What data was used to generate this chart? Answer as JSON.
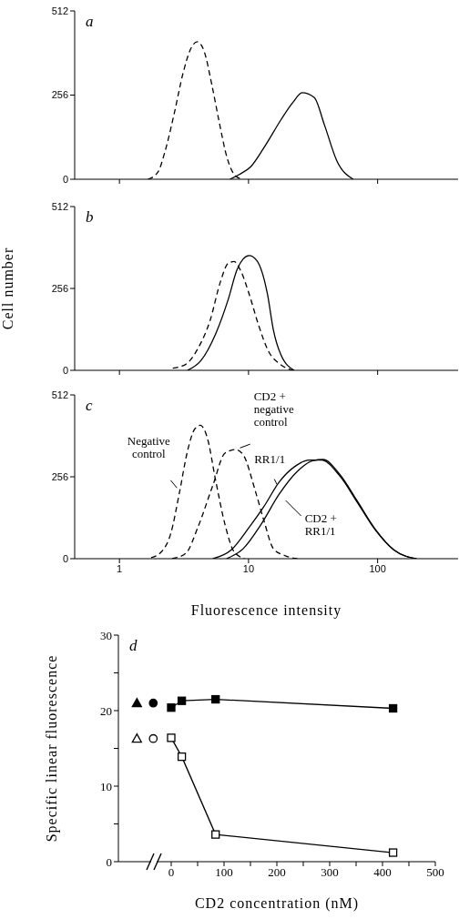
{
  "chart_data": [
    {
      "type": "line",
      "title": "a",
      "log": "x",
      "xlim": [
        0.45,
        420
      ],
      "xticks": [
        1,
        10,
        100
      ],
      "ylim": [
        0,
        512
      ],
      "yticks": [
        0,
        256,
        512
      ],
      "tick_labels": "y",
      "series": [
        {
          "type": "line",
          "color": "#000000",
          "line_style": "dashed",
          "x": [
            1.66,
            1.98,
            2.26,
            2.66,
            3.12,
            3.57,
            4.01,
            4.54,
            5.2,
            5.94,
            6.8,
            7.77,
            8.89
          ],
          "values": [
            0,
            21,
            86,
            201,
            325,
            397,
            418,
            388,
            287,
            172,
            67,
            14,
            0
          ]
        },
        {
          "type": "line",
          "color": "#000000",
          "line_style": "solid",
          "x": [
            7.17,
            8.42,
            10.4,
            13.6,
            17.9,
            22.1,
            26,
            32.2,
            38.9,
            48.2,
            64.7
          ],
          "values": [
            0,
            14,
            38,
            105,
            182,
            234,
            263,
            249,
            163,
            57,
            0
          ]
        }
      ]
    },
    {
      "type": "line",
      "title": "b",
      "ylabel": "Cell number",
      "log": "x",
      "xlim": [
        0.45,
        420
      ],
      "xticks": [
        1,
        10,
        100
      ],
      "ylim": [
        0,
        512
      ],
      "yticks": [
        0,
        256,
        512
      ],
      "tick_labels": "y",
      "series": [
        {
          "type": "line",
          "color": "#000000",
          "line_style": "dashed",
          "x": [
            2.59,
            3.27,
            4.05,
            5.02,
            6.06,
            6.94,
            7.72,
            8.61,
            10.1,
            11.9,
            14.3,
            17.3,
            22
          ],
          "values": [
            7,
            19,
            68,
            154,
            277,
            334,
            340,
            315,
            239,
            144,
            59,
            21,
            0
          ]
        },
        {
          "type": "line",
          "color": "#000000",
          "line_style": "solid",
          "x": [
            3.36,
            4.27,
            5.59,
            6.94,
            8.15,
            9.08,
            10.1,
            11.6,
            14,
            15.6,
            17.8,
            22.6
          ],
          "values": [
            0,
            30,
            116,
            220,
            315,
            348,
            359,
            343,
            239,
            125,
            49,
            0
          ]
        }
      ]
    },
    {
      "type": "line",
      "title": "c",
      "xlabel": "Fluorescence intensity",
      "log": "x",
      "xlim": [
        0.45,
        420
      ],
      "xticks": [
        1,
        10,
        100
      ],
      "ylim": [
        0,
        512
      ],
      "yticks": [
        0,
        256,
        512
      ],
      "series": [
        {
          "type": "line",
          "color": "#000000",
          "line_style": "dashed",
          "x": [
            1.76,
            2.12,
            2.5,
            2.93,
            3.36,
            3.84,
            4.23,
            4.76,
            5.59,
            6.57,
            7.72,
            9.33
          ],
          "values": [
            3,
            22,
            79,
            211,
            335,
            406,
            417,
            382,
            240,
            107,
            22,
            0
          ]
        },
        {
          "type": "line",
          "color": "#000000",
          "line_style": "dashed",
          "x": [
            2.56,
            3.27,
            4.05,
            5.3,
            6.57,
            7.94,
            9.08,
            11.3,
            13.2,
            15.6,
            19.3,
            23.9
          ],
          "values": [
            0,
            17,
            98,
            230,
            330,
            341,
            325,
            211,
            117,
            31,
            9,
            0
          ]
        },
        {
          "type": "line",
          "color": "#000000",
          "line_style": "solid",
          "x": [
            5.3,
            7.32,
            10.1,
            13.2,
            17.3,
            22.6,
            29.7,
            36.7,
            50.8,
            70.1,
            96.8,
            134,
            200
          ],
          "values": [
            0,
            27,
            98,
            164,
            240,
            287,
            308,
            308,
            259,
            174,
            88,
            27,
            0
          ]
        },
        {
          "type": "line",
          "color": "#000000",
          "line_style": "solid",
          "x": [
            6.75,
            9.08,
            12.5,
            17.3,
            23.9,
            31.3,
            37.8,
            50.8,
            70.1,
            96.8,
            134,
            200
          ],
          "values": [
            0,
            31,
            107,
            202,
            273,
            306,
            310,
            264,
            178,
            90,
            27,
            0
          ]
        }
      ],
      "annotations": [
        {
          "text": "Negative\ncontrol",
          "x": 2.93,
          "y": 211
        },
        {
          "text": "CD2 +\nnegative\ncontrol",
          "x": 7.94,
          "y": 341
        },
        {
          "text": "RR1/1",
          "x": 16.9,
          "y": 226
        },
        {
          "text": "CD2 +\nRR1/1",
          "x": 17.3,
          "y": 202
        }
      ]
    },
    {
      "type": "line",
      "title": "d",
      "xlabel": "CD2 concentration (nM)",
      "ylabel": "Specific linear fluorescence",
      "xlim": [
        -100,
        500
      ],
      "xticks": [
        0,
        {
          "value": 50,
          "label": null
        },
        100,
        {
          "value": 150,
          "label": null
        },
        200,
        {
          "value": 250,
          "label": null
        },
        300,
        {
          "value": 350,
          "label": null
        },
        400,
        {
          "value": 450,
          "label": null
        },
        500
      ],
      "ylim": [
        0,
        30
      ],
      "yticks": [
        0,
        {
          "value": 5,
          "label": null
        },
        10,
        {
          "value": 15,
          "label": null
        },
        20,
        {
          "value": 25,
          "label": null
        },
        30
      ],
      "series": [
        {
          "type": "line",
          "color": "#000000",
          "marker": "square",
          "x": [
            0,
            20,
            84,
            420
          ],
          "values": [
            20.4,
            21.3,
            21.5,
            20.3
          ]
        },
        {
          "type": "line",
          "color": "#ffffff",
          "marker": "square",
          "x": [
            0,
            20,
            84,
            420
          ],
          "values": [
            16.4,
            13.9,
            3.6,
            1.2
          ]
        },
        {
          "type": "scatter",
          "color": "#000000",
          "marker": "triangle",
          "x": [
            -65
          ],
          "values": [
            21
          ]
        },
        {
          "type": "scatter",
          "color": "#ffffff",
          "marker": "triangle",
          "x": [
            -65
          ],
          "values": [
            16.3
          ]
        },
        {
          "type": "scatter",
          "color": "#000000",
          "marker": "circle",
          "x": [
            -34
          ],
          "values": [
            21
          ]
        },
        {
          "type": "scatter",
          "color": "#ffffff",
          "marker": "circle",
          "x": [
            -34
          ],
          "values": [
            16.3
          ]
        }
      ]
    }
  ]
}
